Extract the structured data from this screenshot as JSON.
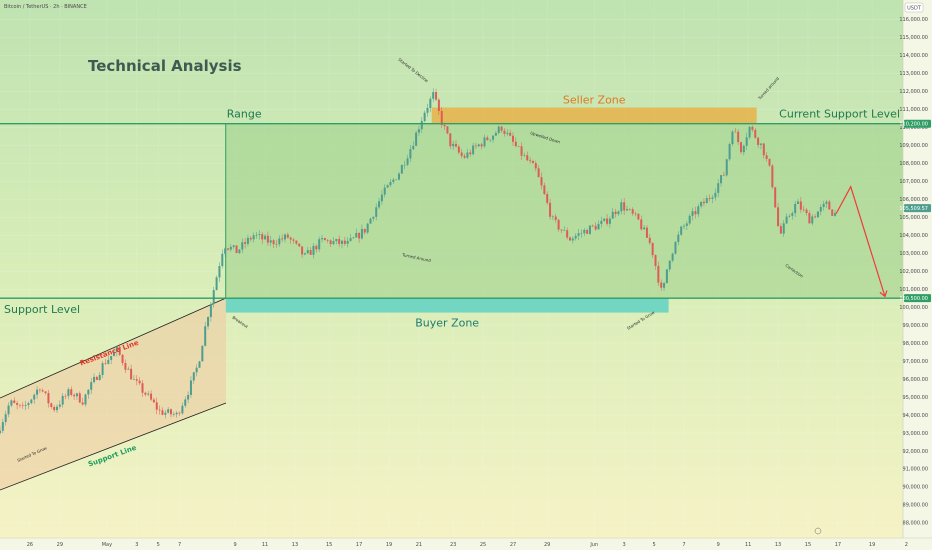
{
  "header": {
    "symbol_line": "Bitcoin / TetherUS · 2h · BINANCE",
    "currency": "USDT"
  },
  "chart_data": {
    "type": "candlestick",
    "title": "Technical Analysis",
    "x_ticks": [
      "26",
      "29",
      "May",
      "3",
      "5",
      "7",
      "9",
      "11",
      "13",
      "15",
      "17",
      "19",
      "21",
      "23",
      "25",
      "27",
      "29",
      "Jun",
      "3",
      "5",
      "7",
      "9",
      "11",
      "13",
      "15",
      "17",
      "19",
      "2"
    ],
    "y_ticks": [
      88000,
      89000,
      90000,
      91000,
      92000,
      93000,
      94000,
      95000,
      96000,
      97000,
      98000,
      99000,
      100000,
      101000,
      102000,
      103000,
      104000,
      105000,
      106000,
      107000,
      108000,
      109000,
      110000,
      111000,
      112000,
      113000,
      114000,
      115000,
      116000
    ],
    "y_tick_labels": [
      "88,000.00",
      "89,000.00",
      "90,000.00",
      "91,000.00",
      "92,000.00",
      "93,000.00",
      "94,000.00",
      "95,000.00",
      "96,000.00",
      "97,000.00",
      "98,000.00",
      "99,000.00",
      "100,000.00",
      "101,000.00",
      "102,000.00",
      "103,000.00",
      "104,000.00",
      "105,000.00",
      "106,000.00",
      "107,000.00",
      "108,000.00",
      "109,000.00",
      "110,000.00",
      "111,000.00",
      "112,000.00",
      "113,000.00",
      "114,000.00",
      "115,000.00",
      "116,000.00"
    ],
    "ylim": [
      87500,
      116800
    ],
    "price_tags": [
      {
        "label": "110,200.00",
        "value": 110200
      },
      {
        "label": "105,509.57",
        "value": 105510
      },
      {
        "label": "100,500.00",
        "value": 100500
      }
    ],
    "levels": [
      {
        "name": "Current Support Level",
        "value": 110200
      },
      {
        "name": "Support Level",
        "value": 100500
      }
    ],
    "zones": [
      {
        "name": "Seller Zone",
        "from": 110200,
        "to": 111100
      },
      {
        "name": "Buyer Zone",
        "from": 99700,
        "to": 100500
      },
      {
        "name": "Range",
        "from": 100500,
        "to": 110200
      }
    ],
    "channel": {
      "resistance": "Resistance Line",
      "support": "Support Line"
    },
    "annotations": [
      "Started To Grow",
      "Breakout",
      "Turned Around",
      "Started To Decline",
      "Upwelled Down",
      "Started To Grow",
      "Turned around",
      "Correction"
    ],
    "price_path": [
      {
        "day": 0,
        "price": 93000
      },
      {
        "day": 1.5,
        "price": 94700
      },
      {
        "day": 3,
        "price": 94300
      },
      {
        "day": 5,
        "price": 95600
      },
      {
        "day": 6.5,
        "price": 94300
      },
      {
        "day": 8.5,
        "price": 95300
      },
      {
        "day": 10,
        "price": 94800
      },
      {
        "day": 12.5,
        "price": 96900
      },
      {
        "day": 14,
        "price": 97600
      },
      {
        "day": 16,
        "price": 95900
      },
      {
        "day": 17.5,
        "price": 95100
      },
      {
        "day": 19,
        "price": 94200
      },
      {
        "day": 21,
        "price": 94000
      },
      {
        "day": 22.5,
        "price": 95500
      },
      {
        "day": 23.5,
        "price": 96800
      },
      {
        "day": 24.5,
        "price": 99300
      },
      {
        "day": 25.2,
        "price": 100700
      },
      {
        "day": 26.5,
        "price": 103500
      },
      {
        "day": 28,
        "price": 103100
      },
      {
        "day": 30,
        "price": 104000
      },
      {
        "day": 32,
        "price": 103600
      },
      {
        "day": 34,
        "price": 103900
      },
      {
        "day": 36,
        "price": 102800
      },
      {
        "day": 38,
        "price": 103700
      },
      {
        "day": 41,
        "price": 103500
      },
      {
        "day": 43,
        "price": 104300
      },
      {
        "day": 45,
        "price": 106200
      },
      {
        "day": 47,
        "price": 107500
      },
      {
        "day": 48.5,
        "price": 109000
      },
      {
        "day": 50,
        "price": 110900
      },
      {
        "day": 51,
        "price": 111800
      },
      {
        "day": 52,
        "price": 110300
      },
      {
        "day": 53,
        "price": 109100
      },
      {
        "day": 54.5,
        "price": 108300
      },
      {
        "day": 56,
        "price": 108900
      },
      {
        "day": 58,
        "price": 109600
      },
      {
        "day": 59,
        "price": 110000
      },
      {
        "day": 61,
        "price": 108700
      },
      {
        "day": 63,
        "price": 107600
      },
      {
        "day": 65,
        "price": 104800
      },
      {
        "day": 67,
        "price": 103800
      },
      {
        "day": 69,
        "price": 104300
      },
      {
        "day": 71,
        "price": 104700
      },
      {
        "day": 73,
        "price": 105700
      },
      {
        "day": 75,
        "price": 104800
      },
      {
        "day": 76.5,
        "price": 103400
      },
      {
        "day": 77.8,
        "price": 100600
      },
      {
        "day": 78.5,
        "price": 102600
      },
      {
        "day": 80,
        "price": 104300
      },
      {
        "day": 82,
        "price": 105500
      },
      {
        "day": 83.5,
        "price": 106200
      },
      {
        "day": 85,
        "price": 107400
      },
      {
        "day": 86,
        "price": 110000
      },
      {
        "day": 87,
        "price": 108800
      },
      {
        "day": 88,
        "price": 110000
      },
      {
        "day": 89.5,
        "price": 108900
      },
      {
        "day": 90.5,
        "price": 107400
      },
      {
        "day": 91,
        "price": 105700
      },
      {
        "day": 91.5,
        "price": 103900
      },
      {
        "day": 92.5,
        "price": 105000
      },
      {
        "day": 93.5,
        "price": 105800
      },
      {
        "day": 95,
        "price": 104900
      },
      {
        "day": 96,
        "price": 105300
      },
      {
        "day": 97,
        "price": 105700
      },
      {
        "day": 97.8,
        "price": 105200
      }
    ],
    "projection": [
      {
        "day": 97.8,
        "price": 105200
      },
      {
        "day": 99.5,
        "price": 106700
      },
      {
        "day": 103.5,
        "price": 100600
      }
    ],
    "colors": {
      "up": "#4e9d8e",
      "down": "#df5b56",
      "seller": "#e8b14a",
      "buyer": "#5fd1c3",
      "range": "#9ccf8b",
      "line": "#2e9e64",
      "projection": "#ef3b3b"
    }
  }
}
